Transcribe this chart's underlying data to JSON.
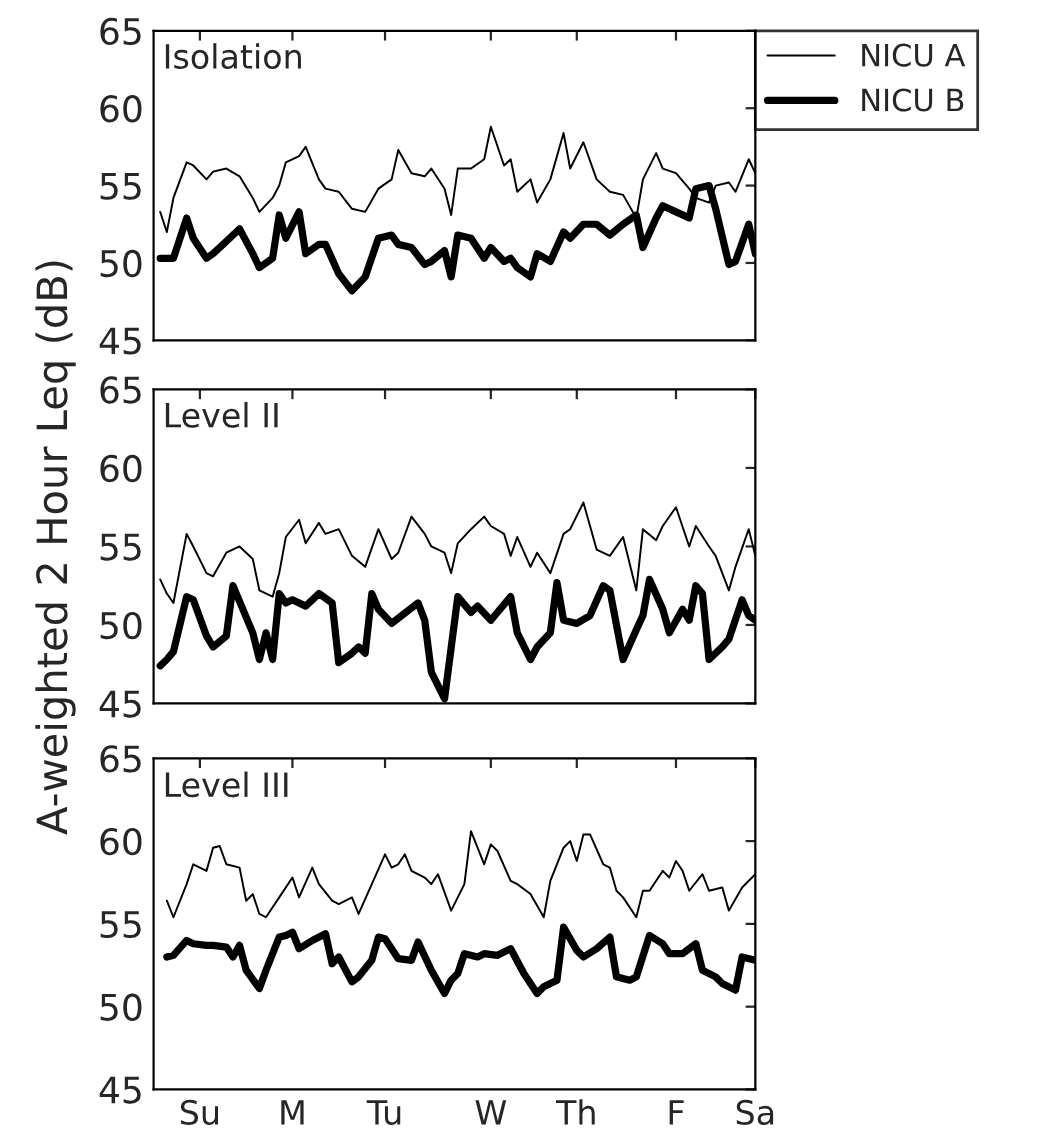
{
  "chart_data": [
    {
      "type": "line",
      "title": "Isolation",
      "ylim": [
        45,
        65
      ],
      "yticks": [
        45,
        50,
        55,
        60,
        65
      ],
      "categories": [
        null,
        null,
        null,
        null,
        null,
        null,
        null,
        null,
        null,
        null,
        null,
        null,
        null,
        null,
        null,
        null,
        null,
        null,
        null,
        null,
        null,
        null,
        null,
        null,
        null,
        null,
        null,
        null,
        null,
        null,
        null,
        null,
        null,
        null,
        null,
        null,
        null,
        null,
        null,
        null,
        null,
        null,
        null,
        null,
        null,
        null,
        null,
        null,
        null,
        null,
        null,
        null,
        null,
        null,
        null,
        null,
        null,
        null,
        null,
        null,
        null,
        null,
        null,
        null,
        null,
        null,
        null,
        null,
        null,
        null,
        null,
        null,
        null,
        null,
        null,
        null,
        null,
        null,
        null,
        null,
        null,
        null,
        null,
        null,
        null,
        null,
        null,
        null,
        null,
        null,
        null,
        null
      ],
      "tick_labels": "y",
      "grid": false,
      "legend": "top right",
      "marker": "none",
      "line_style": "solid",
      "series": [
        {
          "name": "NICU A",
          "color": "#000000",
          "values": [
            null,
            53.3,
            52.0,
            54.2,
            null,
            56.5,
            56.3,
            null,
            55.4,
            55.9,
            null,
            56.1,
            null,
            55.6,
            null,
            54.2,
            53.3,
            null,
            54.2,
            55.0,
            56.5,
            null,
            56.9,
            57.5,
            null,
            55.4,
            54.8,
            null,
            54.6,
            null,
            53.5,
            null,
            53.3,
            null,
            54.8,
            null,
            55.4,
            57.3,
            null,
            55.8,
            null,
            55.6,
            56.1,
            null,
            54.8,
            53.1,
            56.1,
            null,
            56.1,
            null,
            56.7,
            58.8,
            null,
            56.3,
            56.7,
            54.6,
            null,
            55.4,
            53.9,
            null,
            55.4,
            null,
            58.4,
            56.1,
            null,
            57.8,
            null,
            55.4,
            null,
            54.6,
            null,
            54.4,
            null,
            52.9,
            55.4,
            null,
            57.1,
            56.1,
            null,
            55.8,
            null,
            54.8,
            54.2,
            null,
            53.9,
            55.0,
            null,
            55.2,
            54.6,
            null,
            56.7,
            55.8
          ]
        },
        {
          "name": "NICU B",
          "color": "#000000",
          "values": [
            null,
            50.3,
            50.3,
            50.3,
            null,
            52.9,
            51.6,
            null,
            50.3,
            50.6,
            null,
            51.4,
            null,
            52.2,
            null,
            50.6,
            49.7,
            null,
            50.3,
            53.1,
            51.6,
            null,
            53.3,
            50.6,
            null,
            51.2,
            51.2,
            null,
            49.3,
            null,
            48.2,
            null,
            49.1,
            null,
            51.6,
            null,
            51.8,
            51.2,
            null,
            51.0,
            null,
            49.9,
            50.1,
            null,
            50.8,
            49.1,
            51.8,
            null,
            51.6,
            null,
            50.3,
            51.0,
            null,
            50.1,
            50.3,
            49.7,
            null,
            49.1,
            50.6,
            null,
            50.1,
            null,
            52.0,
            51.6,
            null,
            52.5,
            null,
            52.5,
            null,
            51.8,
            null,
            52.5,
            null,
            53.1,
            51.0,
            null,
            52.9,
            53.7,
            null,
            53.3,
            null,
            52.9,
            54.8,
            null,
            55.0,
            53.5,
            null,
            49.9,
            50.1,
            null,
            52.5,
            50.6
          ]
        }
      ]
    },
    {
      "type": "line",
      "title": "Level II",
      "ylabel": "A-weighted 2 Hour Leq (dB)",
      "ylim": [
        45,
        65
      ],
      "yticks": [
        45,
        50,
        55,
        60,
        65
      ],
      "categories": [
        null,
        null,
        null,
        null,
        null,
        null,
        null,
        null,
        null,
        null,
        null,
        null,
        null,
        null,
        null,
        null,
        null,
        null,
        null,
        null,
        null,
        null,
        null,
        null,
        null,
        null,
        null,
        null,
        null,
        null,
        null,
        null,
        null,
        null,
        null,
        null,
        null,
        null,
        null,
        null,
        null,
        null,
        null,
        null,
        null,
        null,
        null,
        null,
        null,
        null,
        null,
        null,
        null,
        null,
        null,
        null,
        null,
        null,
        null,
        null,
        null,
        null,
        null,
        null,
        null,
        null,
        null,
        null,
        null,
        null,
        null,
        null,
        null,
        null,
        null,
        null,
        null,
        null,
        null,
        null,
        null,
        null,
        null,
        null,
        null,
        null,
        null,
        null,
        null,
        null,
        null,
        null
      ],
      "tick_labels": "y",
      "grid": false,
      "marker": "none",
      "line_style": "solid",
      "series": [
        {
          "color": "#000000",
          "values": [
            null,
            52.9,
            52.0,
            51.4,
            null,
            55.8,
            55.0,
            null,
            53.3,
            53.1,
            null,
            54.6,
            null,
            55.0,
            null,
            54.2,
            52.2,
            null,
            51.8,
            53.3,
            55.6,
            null,
            56.7,
            55.2,
            null,
            56.5,
            55.8,
            null,
            56.1,
            null,
            54.4,
            null,
            53.7,
            null,
            56.1,
            null,
            54.2,
            54.6,
            null,
            56.9,
            null,
            55.8,
            55.0,
            null,
            54.6,
            53.3,
            55.2,
            null,
            56.1,
            null,
            56.9,
            56.3,
            null,
            55.8,
            54.4,
            55.6,
            null,
            53.7,
            54.6,
            null,
            53.3,
            null,
            55.8,
            56.1,
            null,
            57.8,
            null,
            54.8,
            null,
            54.4,
            null,
            55.6,
            null,
            52.2,
            56.1,
            null,
            55.4,
            56.3,
            null,
            57.5,
            null,
            55.0,
            56.3,
            null,
            55.0,
            54.4,
            null,
            52.2,
            53.7,
            null,
            56.1,
            54.4
          ]
        },
        {
          "color": "#000000",
          "values": [
            null,
            47.4,
            47.8,
            48.3,
            null,
            51.8,
            51.6,
            null,
            49.3,
            48.6,
            null,
            49.3,
            52.5,
            null,
            null,
            49.5,
            47.8,
            49.5,
            47.8,
            52.0,
            51.4,
            51.6,
            null,
            51.2,
            null,
            52.0,
            null,
            51.4,
            47.6,
            null,
            48.2,
            48.6,
            48.2,
            52.0,
            51.0,
            null,
            50.1,
            null,
            null,
            null,
            51.4,
            50.3,
            47.0,
            null,
            45.3,
            null,
            51.8,
            null,
            50.8,
            51.2,
            null,
            50.3,
            null,
            null,
            51.8,
            49.5,
            null,
            47.8,
            48.6,
            null,
            49.5,
            52.7,
            50.3,
            null,
            50.1,
            null,
            50.6,
            null,
            52.5,
            52.2,
            null,
            47.8,
            null,
            49.7,
            50.6,
            52.9,
            null,
            51.0,
            49.5,
            null,
            51.0,
            50.3,
            52.5,
            52.0,
            47.8,
            null,
            48.6,
            49.1,
            null,
            51.6,
            50.6,
            50.3
          ]
        }
      ]
    },
    {
      "type": "line",
      "title": "Level III",
      "ylim": [
        45,
        65
      ],
      "yticks": [
        45,
        50,
        55,
        60,
        65
      ],
      "categories": [
        null,
        null,
        null,
        null,
        null,
        null,
        null,
        "Su",
        null,
        null,
        null,
        null,
        null,
        null,
        null,
        null,
        null,
        null,
        null,
        null,
        null,
        "M",
        null,
        null,
        null,
        null,
        null,
        null,
        null,
        null,
        null,
        null,
        null,
        null,
        null,
        "Tu",
        null,
        null,
        null,
        null,
        null,
        null,
        null,
        null,
        null,
        null,
        null,
        null,
        null,
        null,
        null,
        "W",
        null,
        null,
        null,
        null,
        null,
        null,
        null,
        null,
        null,
        null,
        null,
        null,
        "Th",
        null,
        null,
        null,
        null,
        null,
        null,
        null,
        null,
        null,
        null,
        null,
        null,
        null,
        null,
        "F",
        null,
        null,
        null,
        null,
        null,
        null,
        null,
        null,
        null,
        null,
        null,
        "Sa"
      ],
      "grid": false,
      "marker": "none",
      "line_style": "solid",
      "series": [
        {
          "color": "#000000",
          "values": [
            null,
            null,
            56.4,
            55.4,
            null,
            57.4,
            58.6,
            null,
            58.2,
            59.6,
            59.7,
            58.6,
            null,
            58.4,
            56.4,
            56.8,
            55.6,
            55.4,
            null,
            56.6,
            null,
            57.8,
            56.6,
            null,
            58.4,
            57.4,
            null,
            56.4,
            56.2,
            null,
            56.6,
            55.6,
            null,
            57.4,
            null,
            59.2,
            58.4,
            58.6,
            59.2,
            58.2,
            null,
            57.8,
            57.4,
            58.0,
            null,
            55.8,
            null,
            57.4,
            60.6,
            null,
            58.6,
            59.8,
            59.4,
            null,
            57.6,
            57.4,
            null,
            56.8,
            null,
            55.4,
            57.6,
            null,
            59.6,
            60.0,
            58.8,
            60.4,
            60.4,
            null,
            58.6,
            58.4,
            57.0,
            56.6,
            null,
            55.4,
            57.0,
            57.0,
            null,
            58.2,
            57.8,
            58.8,
            58.2,
            57.0,
            null,
            58.0,
            57.0,
            null,
            57.2,
            55.8,
            null,
            57.2,
            null,
            58.0
          ]
        },
        {
          "color": "#000000",
          "values": [
            null,
            null,
            53.0,
            53.1,
            null,
            54.0,
            53.8,
            null,
            53.7,
            53.7,
            null,
            53.6,
            53.0,
            53.7,
            52.2,
            null,
            51.1,
            52.2,
            null,
            54.2,
            54.3,
            54.5,
            53.5,
            null,
            54.0,
            null,
            54.4,
            52.6,
            53.0,
            null,
            51.5,
            51.8,
            null,
            52.8,
            54.2,
            54.1,
            null,
            52.9,
            null,
            52.8,
            53.9,
            null,
            52.2,
            null,
            50.8,
            51.6,
            52.0,
            53.2,
            null,
            53.0,
            53.2,
            null,
            53.1,
            null,
            53.5,
            null,
            52.0,
            null,
            50.8,
            51.2,
            null,
            51.6,
            54.8,
            null,
            53.4,
            53.0,
            null,
            53.5,
            null,
            54.2,
            51.8,
            null,
            51.6,
            51.8,
            null,
            54.3,
            null,
            53.8,
            53.2,
            null,
            53.2,
            null,
            53.8,
            52.2,
            null,
            51.8,
            51.4,
            null,
            51.0,
            53.0,
            null,
            52.8
          ]
        }
      ]
    }
  ]
}
